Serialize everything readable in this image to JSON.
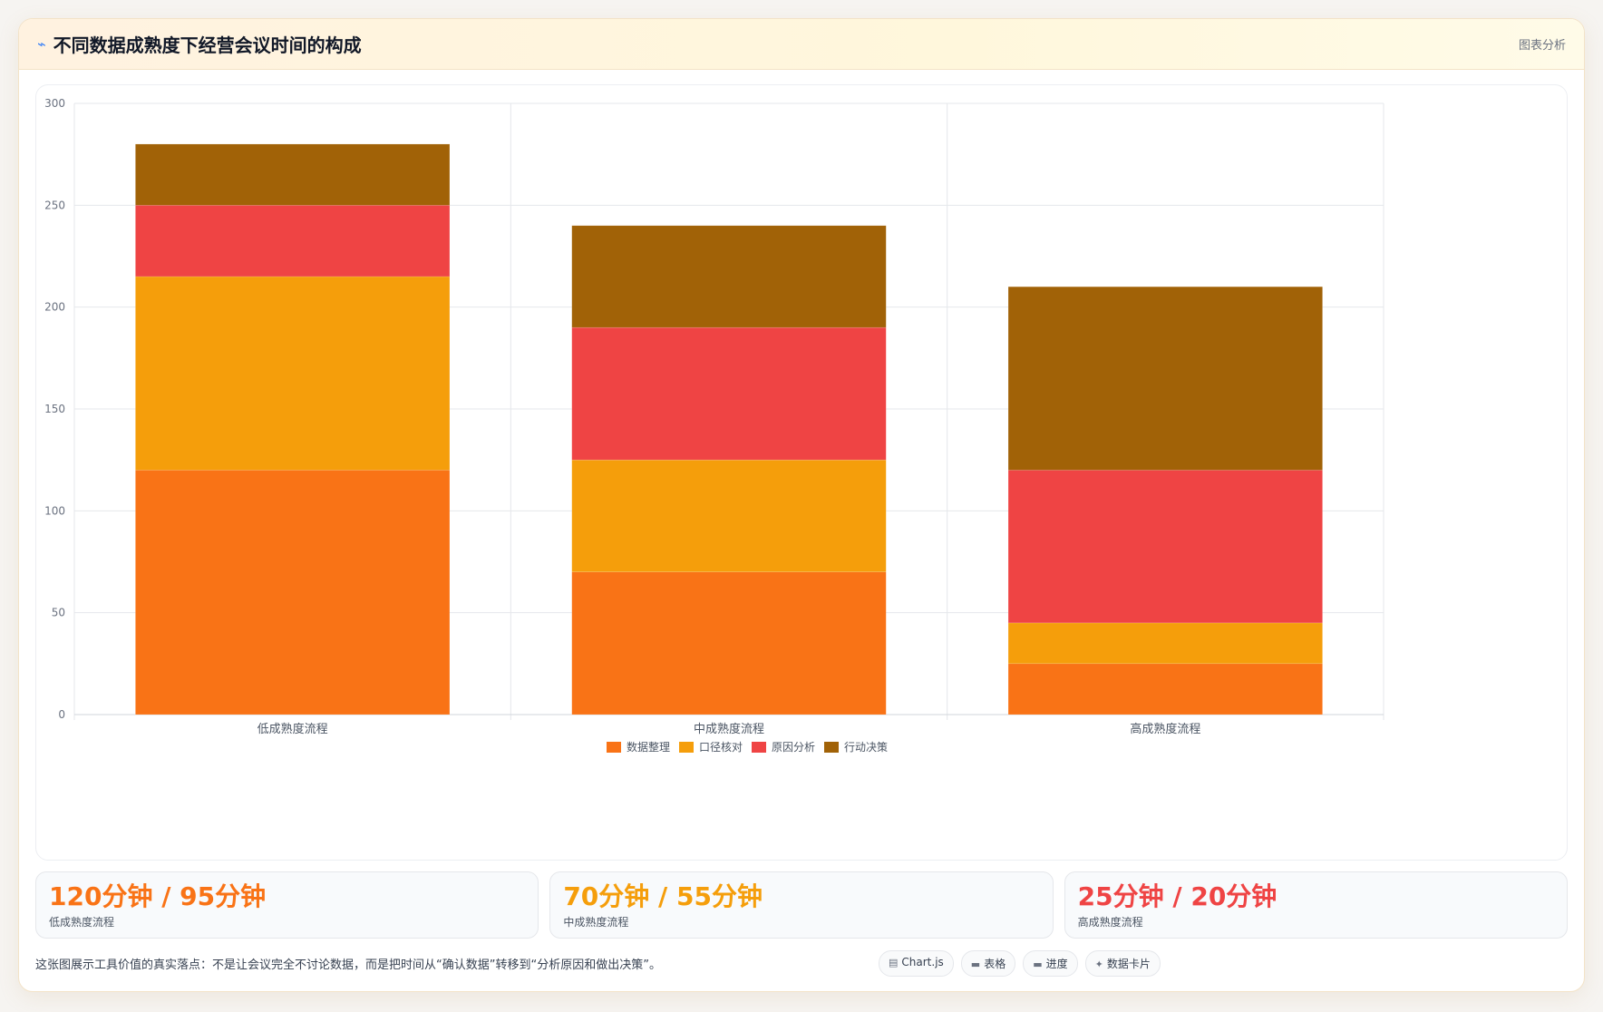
{
  "header": {
    "icon": "sparkle-icon",
    "title": "不同数据成熟度下经营会议时间的构成",
    "tag": "图表分析"
  },
  "chart_data": {
    "type": "bar",
    "stacked": true,
    "title": "",
    "xlabel": "",
    "ylabel": "",
    "categories": [
      "低成熟度流程",
      "中成熟度流程",
      "高成熟度流程"
    ],
    "yticks": [
      0,
      50,
      100,
      150,
      200,
      250,
      300
    ],
    "ylim": [
      0,
      300
    ],
    "grid": true,
    "legend_position": "bottom",
    "series": [
      {
        "name": "数据整理",
        "color": "#f97316",
        "values": [
          120,
          70,
          25
        ]
      },
      {
        "name": "口径核对",
        "color": "#f59e0b",
        "values": [
          95,
          55,
          20
        ]
      },
      {
        "name": "原因分析",
        "color": "#ef4444",
        "values": [
          35,
          65,
          75
        ]
      },
      {
        "name": "行动决策",
        "color": "#a16207",
        "values": [
          30,
          50,
          90
        ]
      }
    ]
  },
  "stats": [
    {
      "value": "120分钟 / 95分钟",
      "label": "低成熟度流程",
      "color": "#f97316"
    },
    {
      "value": "70分钟 / 55分钟",
      "label": "中成熟度流程",
      "color": "#f59e0b"
    },
    {
      "value": "25分钟 / 20分钟",
      "label": "高成熟度流程",
      "color": "#ef4444"
    }
  ],
  "footer": {
    "note": "这张图展示工具价值的真实落点：不是让会议完全不讨论数据，而是把时间从“确认数据”转移到“分析原因和做出决策”。",
    "chips": [
      {
        "icon": "chart-icon",
        "glyph": "▤",
        "label": "Chart.js"
      },
      {
        "icon": "table-icon",
        "glyph": "▬",
        "label": "表格"
      },
      {
        "icon": "progress-icon",
        "glyph": "▬",
        "label": "进度"
      },
      {
        "icon": "card-icon",
        "glyph": "✦",
        "label": "数据卡片"
      }
    ]
  }
}
